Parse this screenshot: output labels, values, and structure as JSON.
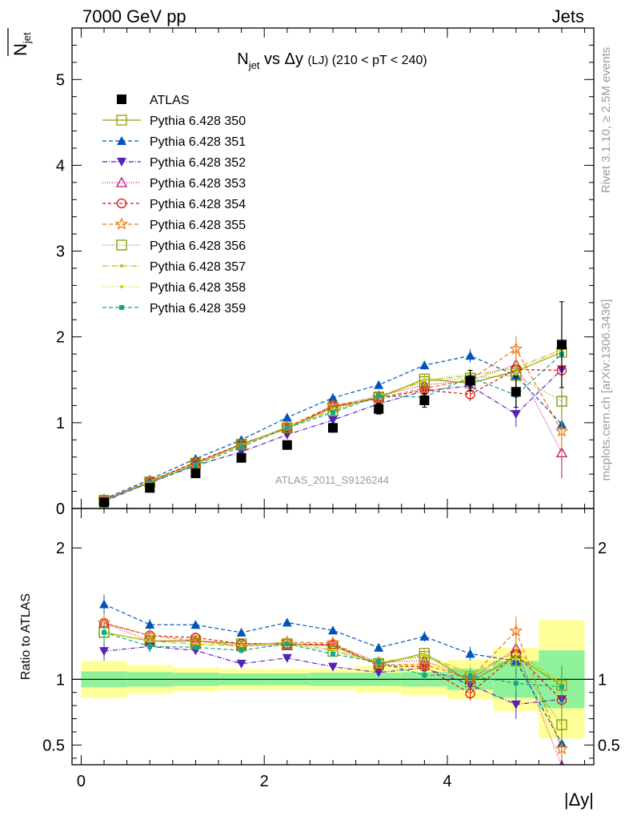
{
  "header": {
    "energy_label": "7000 GeV pp",
    "process_label": "Jets"
  },
  "side_labels": {
    "rivet": "Rivet 3.1.10, ≥ 2.5M events",
    "mcplots": "mcplots.cern.ch [arXiv:1306.3436]"
  },
  "colors": {
    "band_inner": "#8ff29a",
    "band_outer": "#ffff99",
    "axis": "#000000",
    "watermark": "#9b9b9b"
  },
  "chart_data": {
    "type": "scatter",
    "title_main": "N",
    "title_sub": "jet",
    "title_mid": " vs Δy ",
    "title_small": "(LJ)",
    "title_range": " (210 < pT < 240)",
    "ylabel_main": "N",
    "ylabel_sub": "jet",
    "xlabel": "|Δy|",
    "ratio_ylabel": "Ratio to ATLAS",
    "analysis_id": "ATLAS_2011_S9126244",
    "xlim": [
      -0.1,
      5.6
    ],
    "ylim": [
      0,
      5.6
    ],
    "ratio_ylim": [
      0.35,
      2.3
    ],
    "main_ticks": [
      {
        "value": 0,
        "label": "0"
      },
      {
        "value": 1,
        "label": "1"
      },
      {
        "value": 2,
        "label": "2"
      },
      {
        "value": 3,
        "label": "3"
      },
      {
        "value": 4,
        "label": "4"
      },
      {
        "value": 5,
        "label": "5"
      }
    ],
    "ratio_ticks": [
      {
        "value": 0.5,
        "label": "0.5"
      },
      {
        "value": 1,
        "label": "1"
      },
      {
        "value": 2,
        "label": "2"
      }
    ],
    "x_ticks": [
      {
        "value": 0,
        "label": "0"
      },
      {
        "value": 2,
        "label": "2"
      },
      {
        "value": 4,
        "label": "4"
      }
    ],
    "x": [
      0.25,
      0.75,
      1.25,
      1.75,
      2.25,
      2.75,
      3.25,
      3.75,
      4.25,
      4.75,
      5.25
    ],
    "data": {
      "name": "ATLAS",
      "values": [
        0.07,
        0.24,
        0.41,
        0.59,
        0.74,
        0.94,
        1.16,
        1.26,
        1.49,
        1.36,
        1.91
      ],
      "errors": [
        0.01,
        0.02,
        0.03,
        0.03,
        0.04,
        0.05,
        0.06,
        0.08,
        0.12,
        0.18,
        0.5
      ]
    },
    "band_edges": [
      0,
      0.5,
      1.0,
      1.5,
      2.0,
      2.5,
      3.0,
      3.5,
      4.0,
      4.5,
      5.0,
      5.5
    ],
    "band_inner_half": [
      0.06,
      0.055,
      0.05,
      0.045,
      0.045,
      0.05,
      0.05,
      0.055,
      0.08,
      0.14,
      0.22
    ],
    "band_outer_half": [
      0.14,
      0.11,
      0.09,
      0.08,
      0.08,
      0.08,
      0.1,
      0.12,
      0.15,
      0.24,
      0.45
    ],
    "series": [
      {
        "name": "Pythia 6.428 350",
        "color": "#999900",
        "marker": "square-open",
        "dash": "",
        "values": [
          0.095,
          0.31,
          0.53,
          0.75,
          0.94,
          1.18,
          1.29,
          1.51,
          1.46,
          1.6,
          1.82
        ],
        "errors": [
          0.005,
          0.01,
          0.01,
          0.015,
          0.02,
          0.02,
          0.03,
          0.05,
          0.08,
          0.15,
          0.3
        ]
      },
      {
        "name": "Pythia 6.428 351",
        "color": "#0055bb",
        "marker": "triangle-up",
        "dash": "5,3",
        "values": [
          0.11,
          0.34,
          0.58,
          0.8,
          1.06,
          1.29,
          1.44,
          1.67,
          1.78,
          1.55,
          0.98
        ],
        "errors": [
          0.005,
          0.01,
          0.01,
          0.015,
          0.02,
          0.02,
          0.03,
          0.05,
          0.08,
          0.15,
          0.3
        ]
      },
      {
        "name": "Pythia 6.428 352",
        "color": "#5522bb",
        "marker": "triangle-down",
        "dash": "6,2,1,2",
        "values": [
          0.085,
          0.3,
          0.5,
          0.66,
          0.86,
          1.03,
          1.22,
          1.37,
          1.43,
          1.1,
          1.62
        ],
        "errors": [
          0.005,
          0.01,
          0.01,
          0.015,
          0.02,
          0.02,
          0.03,
          0.05,
          0.08,
          0.15,
          0.3
        ]
      },
      {
        "name": "Pythia 6.428 353",
        "color": "#bb1177",
        "marker": "triangle-open",
        "dash": "1,2",
        "values": [
          0.1,
          0.31,
          0.53,
          0.74,
          0.93,
          1.19,
          1.31,
          1.44,
          1.49,
          1.68,
          0.65
        ],
        "errors": [
          0.005,
          0.01,
          0.01,
          0.015,
          0.02,
          0.02,
          0.03,
          0.05,
          0.08,
          0.15,
          0.3
        ]
      },
      {
        "name": "Pythia 6.428 354",
        "color": "#dd1111",
        "marker": "circle-open",
        "dash": "4,3",
        "values": [
          0.1,
          0.32,
          0.54,
          0.75,
          0.94,
          1.19,
          1.28,
          1.38,
          1.33,
          1.62,
          1.61
        ],
        "errors": [
          0.005,
          0.01,
          0.01,
          0.015,
          0.02,
          0.02,
          0.03,
          0.05,
          0.08,
          0.15,
          0.3
        ]
      },
      {
        "name": "Pythia 6.428 355",
        "color": "#ee7711",
        "marker": "star-open",
        "dash": "5,3",
        "values": [
          0.1,
          0.32,
          0.53,
          0.74,
          0.95,
          1.2,
          1.29,
          1.4,
          1.5,
          1.86,
          0.9
        ],
        "errors": [
          0.005,
          0.01,
          0.01,
          0.015,
          0.02,
          0.02,
          0.03,
          0.05,
          0.08,
          0.15,
          0.3
        ]
      },
      {
        "name": "Pythia 6.428 356",
        "color": "#779900",
        "marker": "square-open",
        "dash": "1,2",
        "values": [
          0.095,
          0.31,
          0.52,
          0.74,
          0.94,
          1.14,
          1.3,
          1.48,
          1.52,
          1.55,
          1.25
        ],
        "errors": [
          0.005,
          0.01,
          0.01,
          0.015,
          0.02,
          0.02,
          0.03,
          0.05,
          0.08,
          0.15,
          0.3
        ]
      },
      {
        "name": "Pythia 6.428 357",
        "color": "#ccbb00",
        "marker": "dot",
        "dash": "7,2,1,2",
        "values": [
          0.095,
          0.31,
          0.52,
          0.74,
          0.95,
          1.15,
          1.31,
          1.49,
          1.55,
          1.64,
          1.85
        ],
        "errors": [
          0.005,
          0.01,
          0.01,
          0.015,
          0.02,
          0.02,
          0.03,
          0.05,
          0.08,
          0.15,
          0.3
        ]
      },
      {
        "name": "Pythia 6.428 358",
        "color": "#bbdd00",
        "marker": "dot",
        "dash": "1,2",
        "values": [
          0.095,
          0.31,
          0.52,
          0.74,
          0.95,
          1.15,
          1.31,
          1.5,
          1.57,
          1.57,
          1.87
        ],
        "errors": [
          0.005,
          0.01,
          0.01,
          0.015,
          0.02,
          0.02,
          0.03,
          0.05,
          0.08,
          0.15,
          0.3
        ]
      },
      {
        "name": "Pythia 6.428 359",
        "color": "#11aa88",
        "marker": "square-small",
        "dash": "5,3",
        "values": [
          0.095,
          0.3,
          0.51,
          0.72,
          0.94,
          1.12,
          1.31,
          1.3,
          1.53,
          1.32,
          1.8
        ],
        "errors": [
          0.005,
          0.01,
          0.01,
          0.015,
          0.02,
          0.02,
          0.03,
          0.05,
          0.08,
          0.15,
          0.3
        ]
      }
    ]
  }
}
